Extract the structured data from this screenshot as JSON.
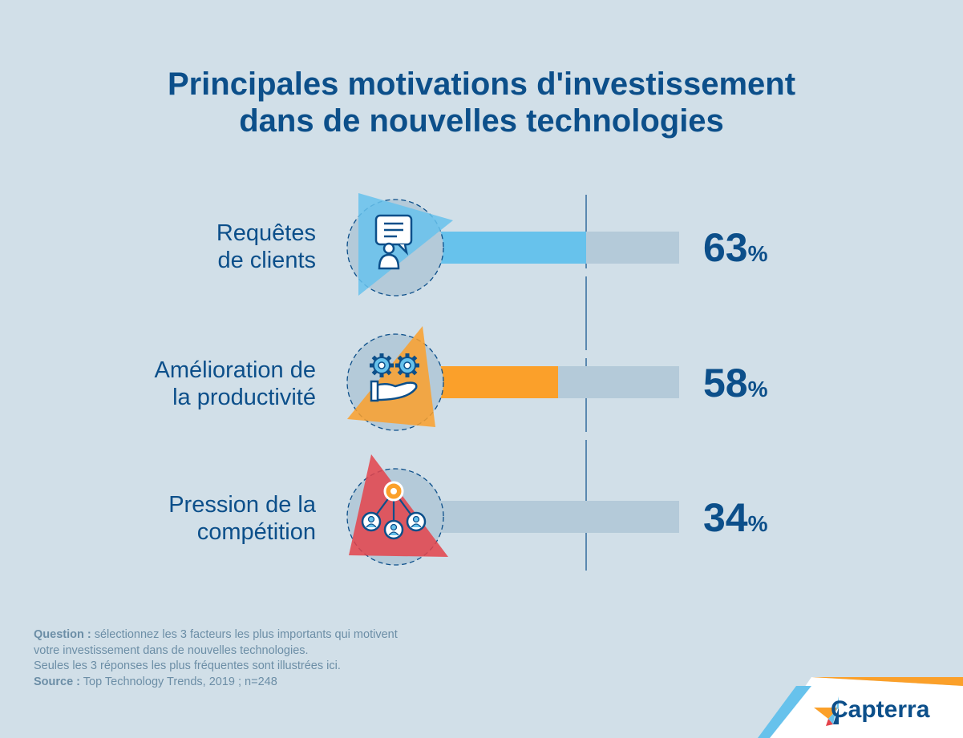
{
  "title": {
    "line1": "Principales motivations d'investissement",
    "line2": "dans de nouvelles technologies"
  },
  "chart_data": {
    "type": "bar",
    "orientation": "horizontal",
    "title": "Principales motivations d'investissement dans de nouvelles technologies",
    "categories": [
      "Requêtes de clients",
      "Amélioration de la productivité",
      "Pression de la compétition"
    ],
    "values": [
      63,
      58,
      34
    ],
    "unit": "%",
    "xlim": [
      0,
      100
    ],
    "reference_line_value": 63,
    "items": [
      {
        "label_lines": [
          "Requêtes",
          "de clients"
        ],
        "value": 63,
        "value_text": "63",
        "color": "#67c2ec",
        "icon": "customer-request-icon"
      },
      {
        "label_lines": [
          "Amélioration de",
          "la productivité"
        ],
        "value": 58,
        "value_text": "58",
        "color": "#fba02a",
        "icon": "gears-hand-icon"
      },
      {
        "label_lines": [
          "Pression de la",
          "compétition"
        ],
        "value": 34,
        "value_text": "34",
        "color": "#e4434a",
        "icon": "network-people-icon"
      }
    ],
    "track_color": "#b4cad9"
  },
  "percent_sign": "%",
  "footnote": {
    "question_label": "Question :",
    "question_text1": " sélectionnez les 3 facteurs les plus importants qui motivent",
    "question_text2": "votre investissement dans de nouvelles technologies.",
    "note": "Seules les 3 réponses les plus fréquentes sont illustrées ici.",
    "source_label": "Source :",
    "source_text": " Top Technology Trends, 2019 ; n=248"
  },
  "brand": {
    "name": "Capterra",
    "colors": {
      "orange": "#fba02a",
      "blue": "#67c2ec",
      "navy": "#0c4f8a",
      "red": "#e4434a"
    }
  }
}
